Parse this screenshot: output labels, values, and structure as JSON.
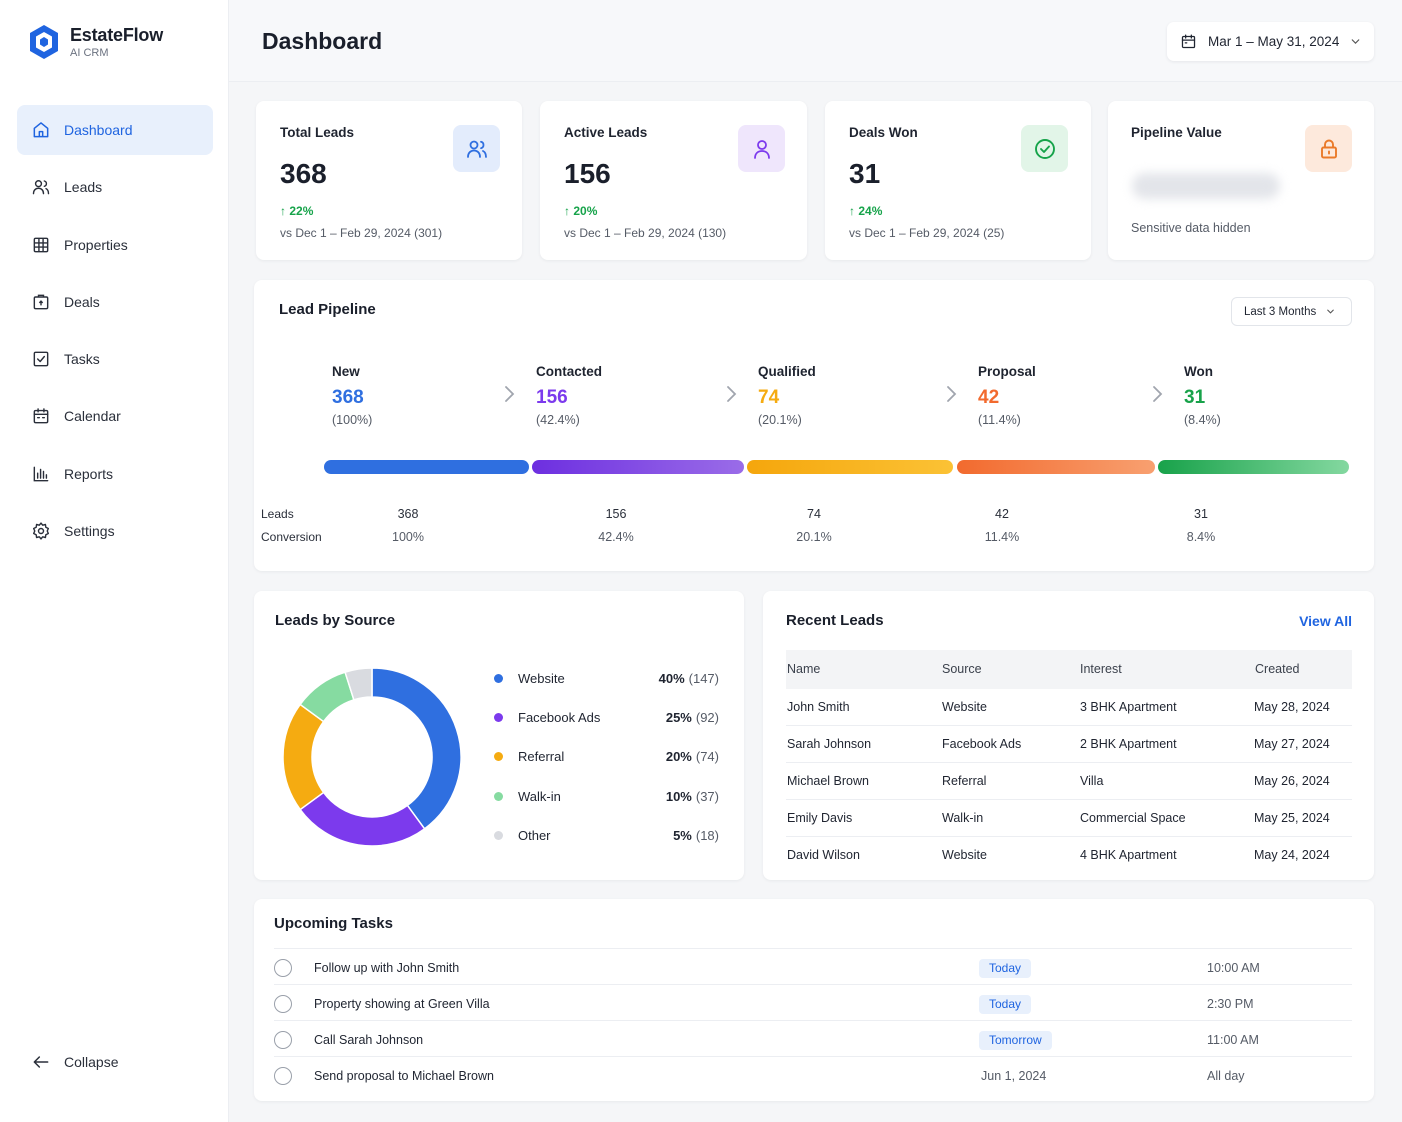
{
  "brand": {
    "name": "EstateFlow",
    "sub": "AI CRM"
  },
  "nav": {
    "items": [
      {
        "label": "Dashboard",
        "icon": "home-icon",
        "active": true
      },
      {
        "label": "Leads",
        "icon": "users-icon"
      },
      {
        "label": "Properties",
        "icon": "building-grid-icon"
      },
      {
        "label": "Deals",
        "icon": "briefcase-icon"
      },
      {
        "label": "Tasks",
        "icon": "checkbox-icon"
      },
      {
        "label": "Calendar",
        "icon": "calendar-icon"
      },
      {
        "label": "Reports",
        "icon": "bar-chart-icon"
      },
      {
        "label": "Settings",
        "icon": "gear-icon"
      }
    ],
    "collapse_label": "Collapse"
  },
  "header": {
    "title": "Dashboard",
    "date_range": "Mar 1 – May 31, 2024"
  },
  "stats": [
    {
      "title": "Total Leads",
      "value": "368",
      "change": "22%",
      "compare": "vs Dec 1 – Feb 29, 2024 (301)",
      "icon": "users-icon",
      "color": "#2f6fe0"
    },
    {
      "title": "Active Leads",
      "value": "156",
      "change": "20%",
      "compare": "vs Dec 1 – Feb 29, 2024 (130)",
      "icon": "user-icon",
      "color": "#7c3aed"
    },
    {
      "title": "Deals Won",
      "value": "31",
      "change": "24%",
      "compare": "vs Dec 1 – Feb 29, 2024 (25)",
      "icon": "check-circle-icon",
      "color": "#16a34a"
    },
    {
      "title": "Pipeline Value",
      "hidden_note": "Sensitive data hidden",
      "icon": "lock-icon",
      "color": "#ea7a2a"
    }
  ],
  "pipeline": {
    "title": "Lead Pipeline",
    "filter": "Last 3 Months",
    "stages": [
      {
        "name": "New",
        "count": "368",
        "pct": "(100%)",
        "color": "#2f6fe0"
      },
      {
        "name": "Contacted",
        "count": "156",
        "pct": "(42.4%)",
        "color": "#7c3aed"
      },
      {
        "name": "Qualified",
        "count": "74",
        "pct": "(20.1%)",
        "color": "#f5ab11"
      },
      {
        "name": "Proposal",
        "count": "42",
        "pct": "(11.4%)",
        "color": "#f26a2e"
      },
      {
        "name": "Won",
        "count": "31",
        "pct": "(8.4%)",
        "color": "#18a24a"
      }
    ],
    "row_labels": {
      "leads": "Leads",
      "conversion": "Conversion"
    },
    "leads_values": [
      "368",
      "156",
      "74",
      "42",
      "31"
    ],
    "conversion_values": [
      "100%",
      "42.4%",
      "20.1%",
      "11.4%",
      "8.4%"
    ]
  },
  "sources": {
    "title": "Leads by Source",
    "items": [
      {
        "label": "Website",
        "pct": "40%",
        "count": "(147)",
        "color": "#2f6fe0"
      },
      {
        "label": "Facebook Ads",
        "pct": "25%",
        "count": "(92)",
        "color": "#7c3aed"
      },
      {
        "label": "Referral",
        "pct": "20%",
        "count": "(74)",
        "color": "#f5ab11"
      },
      {
        "label": "Walk-in",
        "pct": "10%",
        "count": "(37)",
        "color": "#86dba1"
      },
      {
        "label": "Other",
        "pct": "5%",
        "count": "(18)",
        "color": "#d9dbe0"
      }
    ]
  },
  "chart_data": {
    "type": "pie",
    "categories": [
      "Website",
      "Facebook Ads",
      "Referral",
      "Walk-in",
      "Other"
    ],
    "values": [
      147,
      92,
      74,
      37,
      18
    ],
    "title": "Leads by Source"
  },
  "recent": {
    "title": "Recent Leads",
    "view_all": "View All",
    "columns": [
      "Name",
      "Source",
      "Interest",
      "Created"
    ],
    "rows": [
      [
        "John Smith",
        "Website",
        "3 BHK Apartment",
        "May 28, 2024"
      ],
      [
        "Sarah Johnson",
        "Facebook Ads",
        "2 BHK Apartment",
        "May 27, 2024"
      ],
      [
        "Michael Brown",
        "Referral",
        "Villa",
        "May 26, 2024"
      ],
      [
        "Emily Davis",
        "Walk-in",
        "Commercial Space",
        "May 25, 2024"
      ],
      [
        "David Wilson",
        "Website",
        "4 BHK Apartment",
        "May 24, 2024"
      ]
    ]
  },
  "tasks": {
    "title": "Upcoming Tasks",
    "items": [
      {
        "text": "Follow up with John Smith",
        "due": "Today",
        "badge": true,
        "time": "10:00 AM"
      },
      {
        "text": "Property showing at Green Villa",
        "due": "Today",
        "badge": true,
        "time": "2:30 PM"
      },
      {
        "text": "Call Sarah Johnson",
        "due": "Tomorrow",
        "badge": true,
        "time": "11:00 AM"
      },
      {
        "text": "Send proposal to Michael Brown",
        "due": "Jun 1, 2024",
        "badge": false,
        "time": "All day"
      }
    ]
  }
}
